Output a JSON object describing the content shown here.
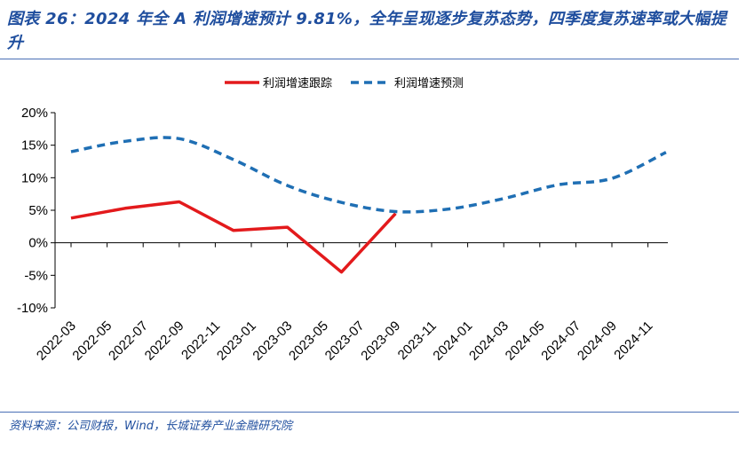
{
  "header": {
    "title": "图表 26：2024 年全 A 利润增速预计 9.81%，全年呈现逐步复苏态势，四季度复苏速率或大幅提升"
  },
  "footer": {
    "source": "资料来源：公司财报，Wind，长城证券产业金融研究院"
  },
  "chart_data": {
    "type": "line",
    "categories": [
      "2022-03",
      "2022-06",
      "2022-09",
      "2022-12",
      "2023-03",
      "2023-06",
      "2023-09",
      "2023-12",
      "2024-03",
      "2024-06",
      "2024-09",
      "2024-12"
    ],
    "x_tick_labels": [
      "2022-03",
      "2022-05",
      "2022-07",
      "2022-09",
      "2022-11",
      "2023-01",
      "2023-03",
      "2023-05",
      "2023-07",
      "2023-09",
      "2023-11",
      "2024-01",
      "2024-03",
      "2024-05",
      "2024-07",
      "2024-09",
      "2024-11"
    ],
    "y_tick_labels": [
      "20%",
      "15%",
      "10%",
      "5%",
      "0%",
      "-5%",
      "-10%"
    ],
    "ylim": [
      -10,
      20
    ],
    "series": [
      {
        "name": "利润增速跟踪",
        "color": "#e31a1c",
        "style": "solid",
        "points": [
          [
            "2022-03",
            3.8
          ],
          [
            "2022-06",
            5.3
          ],
          [
            "2022-09",
            6.3
          ],
          [
            "2022-12",
            1.9
          ],
          [
            "2023-03",
            2.4
          ],
          [
            "2023-06",
            -4.5
          ],
          [
            "2023-09",
            4.5
          ]
        ]
      },
      {
        "name": "利润增速预测",
        "color": "#1f6fb4",
        "style": "dashed",
        "points": [
          [
            "2022-03",
            14.0
          ],
          [
            "2022-06",
            15.6
          ],
          [
            "2022-09",
            16.0
          ],
          [
            "2022-12",
            12.8
          ],
          [
            "2023-03",
            8.8
          ],
          [
            "2023-06",
            6.2
          ],
          [
            "2023-09",
            4.8
          ],
          [
            "2023-12",
            5.2
          ],
          [
            "2024-03",
            6.8
          ],
          [
            "2024-06",
            8.9
          ],
          [
            "2024-09",
            9.9
          ],
          [
            "2024-12",
            13.9
          ]
        ]
      }
    ],
    "legend_position": "top"
  }
}
